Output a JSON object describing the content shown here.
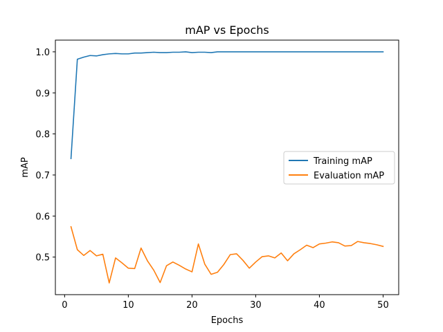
{
  "chart_data": {
    "type": "line",
    "title": "mAP vs Epochs",
    "xlabel": "Epochs",
    "ylabel": "mAP",
    "xlim": [
      -1.45,
      52.45
    ],
    "ylim": [
      0.4085,
      1.0285
    ],
    "xticks": [
      0,
      10,
      20,
      30,
      40,
      50
    ],
    "yticks": [
      0.5,
      0.6,
      0.7,
      0.8,
      0.9,
      1.0
    ],
    "ytick_labels": [
      "0.5",
      "0.6",
      "0.7",
      "0.8",
      "0.9",
      "1.0"
    ],
    "grid": false,
    "legend_position": "center-right",
    "x": [
      1,
      2,
      3,
      4,
      5,
      6,
      7,
      8,
      9,
      10,
      11,
      12,
      13,
      14,
      15,
      16,
      17,
      18,
      19,
      20,
      21,
      22,
      23,
      24,
      25,
      26,
      27,
      28,
      29,
      30,
      31,
      32,
      33,
      34,
      35,
      36,
      37,
      38,
      39,
      40,
      41,
      42,
      43,
      44,
      45,
      46,
      47,
      48,
      49,
      50
    ],
    "series": [
      {
        "name": "Training mAP",
        "color": "#1f77b4",
        "values": [
          0.74,
          0.982,
          0.987,
          0.991,
          0.99,
          0.993,
          0.995,
          0.996,
          0.995,
          0.995,
          0.997,
          0.997,
          0.998,
          0.999,
          0.998,
          0.998,
          0.999,
          0.999,
          1.0,
          0.998,
          0.999,
          0.999,
          0.998,
          1.0,
          1.0,
          1.0,
          1.0,
          1.0,
          1.0,
          1.0,
          1.0,
          1.0,
          1.0,
          1.0,
          1.0,
          1.0,
          1.0,
          1.0,
          1.0,
          1.0,
          1.0,
          1.0,
          1.0,
          1.0,
          1.0,
          1.0,
          1.0,
          1.0,
          1.0,
          1.0
        ]
      },
      {
        "name": "Evaluation mAP",
        "color": "#ff7f0e",
        "values": [
          0.574,
          0.518,
          0.504,
          0.516,
          0.503,
          0.507,
          0.437,
          0.498,
          0.486,
          0.473,
          0.472,
          0.522,
          0.491,
          0.468,
          0.438,
          0.479,
          0.488,
          0.48,
          0.471,
          0.464,
          0.532,
          0.483,
          0.458,
          0.463,
          0.482,
          0.506,
          0.508,
          0.492,
          0.473,
          0.488,
          0.501,
          0.503,
          0.498,
          0.51,
          0.491,
          0.508,
          0.518,
          0.529,
          0.523,
          0.532,
          0.534,
          0.537,
          0.535,
          0.527,
          0.528,
          0.538,
          0.535,
          0.533,
          0.53,
          0.526
        ]
      }
    ]
  }
}
